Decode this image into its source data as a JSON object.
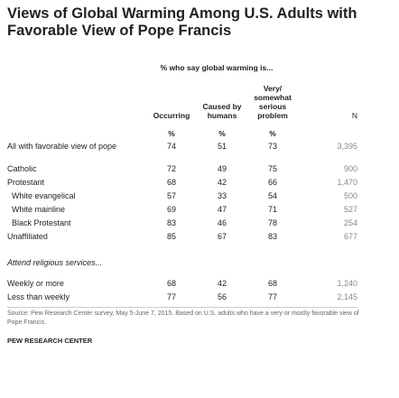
{
  "title": "Views of Global Warming Among U.S. Adults with Favorable View of Pope Francis",
  "table": {
    "subheader": "% who say global warming is...",
    "columns": [
      "Occurring",
      "Caused by humans",
      "Very/ somewhat serious problem",
      "N"
    ],
    "units": [
      "%",
      "%",
      "%"
    ],
    "sections": [
      {
        "rows": [
          {
            "label": "All with favorable view of pope",
            "values": [
              "74",
              "51",
              "73",
              "3,395"
            ]
          }
        ]
      },
      {
        "rows": [
          {
            "label": "Catholic",
            "values": [
              "72",
              "49",
              "75",
              "900"
            ]
          },
          {
            "label": "Protestant",
            "values": [
              "68",
              "42",
              "66",
              "1,470"
            ],
            "subrows": [
              {
                "label": "White evangelical",
                "values": [
                  "57",
                  "33",
                  "54",
                  "500"
                ]
              },
              {
                "label": "White mainline",
                "values": [
                  "69",
                  "47",
                  "71",
                  "527"
                ]
              },
              {
                "label": "Black Protestant",
                "values": [
                  "83",
                  "46",
                  "78",
                  "254"
                ]
              }
            ]
          },
          {
            "label": "Unaffiliated",
            "values": [
              "85",
              "67",
              "83",
              "677"
            ]
          }
        ]
      },
      {
        "heading": "Attend religious services...",
        "rows": [
          {
            "label": "Weekly or more",
            "values": [
              "68",
              "42",
              "68",
              "1,240"
            ]
          },
          {
            "label": "Less than weekly",
            "values": [
              "77",
              "56",
              "77",
              "2,145"
            ]
          }
        ]
      }
    ]
  },
  "source": "Source: Pew Research Center survey, May 5-June 7, 2015. Based on U.S. adults who have a very or mostly favorable view of Pope Francis.",
  "footer": "PEW RESEARCH CENTER"
}
